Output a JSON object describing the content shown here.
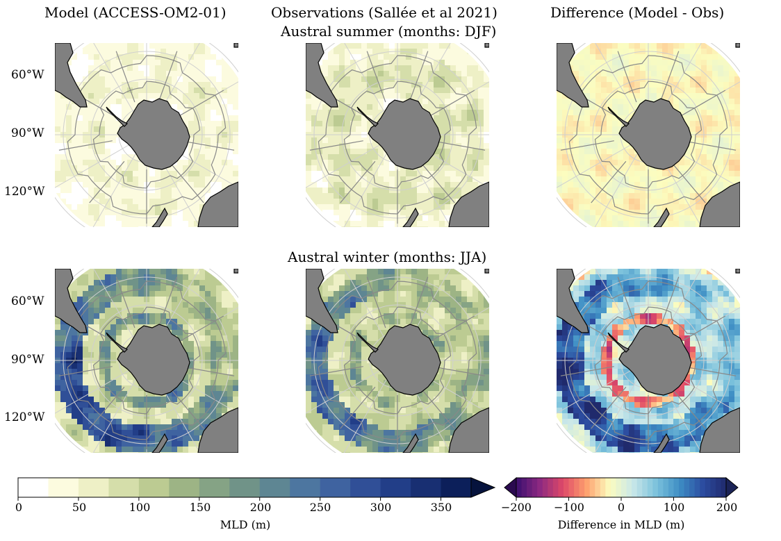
{
  "columns": [
    {
      "title": "Model (ACCESS-OM2-01)"
    },
    {
      "title": "Observations (Sallée et al 2021)"
    },
    {
      "title": "Difference (Model - Obs)"
    }
  ],
  "rows": [
    {
      "title": "Austral summer (months: DJF)"
    },
    {
      "title": "Austral winter (months: JJA)"
    }
  ],
  "lat_labels": [
    "60°W",
    "90°W",
    "120°W"
  ],
  "colorbar_mld": {
    "label": "MLD (m)",
    "ticks": [
      "0",
      "50",
      "100",
      "150",
      "200",
      "250",
      "300",
      "350"
    ],
    "min": 0,
    "max": 375,
    "step": 25,
    "extend": "max",
    "colors": [
      "#ffffff",
      "#fcfbdf",
      "#eef0c6",
      "#d5deaa",
      "#bccb92",
      "#9db485",
      "#85a385",
      "#709388",
      "#5e8693",
      "#4d76a0",
      "#3f63a0",
      "#304f97",
      "#223e88",
      "#182f72",
      "#0c1f5a"
    ],
    "over_color": "#06133d"
  },
  "colorbar_diff": {
    "label": "Difference in MLD (m)",
    "ticks": [
      "−200",
      "−100",
      "0",
      "100",
      "200"
    ],
    "min": -200,
    "max": 200,
    "extend": "both",
    "stops": [
      "#3b0f6f",
      "#8c2981",
      "#de4968",
      "#fe9f6d",
      "#fcfdbf",
      "#c9e7e9",
      "#7cc2dc",
      "#3e8ec4",
      "#2c4ca0",
      "#202a6c"
    ],
    "under_color": "#2a0a4f",
    "over_color": "#1b2357"
  },
  "chart_data": [
    {
      "type": "heatmap",
      "panel": "model-summer",
      "title": "Model (ACCESS-OM2-01)",
      "row": "Austral summer (months: DJF)",
      "units": "m",
      "colorbar": "MLD (m)",
      "typical_range": [
        0,
        100
      ]
    },
    {
      "type": "heatmap",
      "panel": "obs-summer",
      "title": "Observations (Sallée et al 2021)",
      "row": "Austral summer (months: DJF)",
      "units": "m",
      "colorbar": "MLD (m)",
      "typical_range": [
        25,
        125
      ]
    },
    {
      "type": "heatmap",
      "panel": "diff-summer",
      "title": "Difference (Model - Obs)",
      "row": "Austral summer (months: DJF)",
      "units": "m",
      "colorbar": "Difference in MLD (m)",
      "typical_range": [
        -50,
        20
      ]
    },
    {
      "type": "heatmap",
      "panel": "model-winter",
      "title": "Model (ACCESS-OM2-01)",
      "row": "Austral winter (months: JJA)",
      "units": "m",
      "colorbar": "MLD (m)",
      "typical_range": [
        50,
        375
      ]
    },
    {
      "type": "heatmap",
      "panel": "obs-winter",
      "title": "Observations (Sallée et al 2021)",
      "row": "Austral winter (months: JJA)",
      "units": "m",
      "colorbar": "MLD (m)",
      "typical_range": [
        50,
        300
      ]
    },
    {
      "type": "heatmap",
      "panel": "diff-winter",
      "title": "Difference (Model - Obs)",
      "row": "Austral winter (months: JJA)",
      "units": "m",
      "colorbar": "Difference in MLD (m)",
      "typical_range": [
        -200,
        200
      ]
    }
  ]
}
